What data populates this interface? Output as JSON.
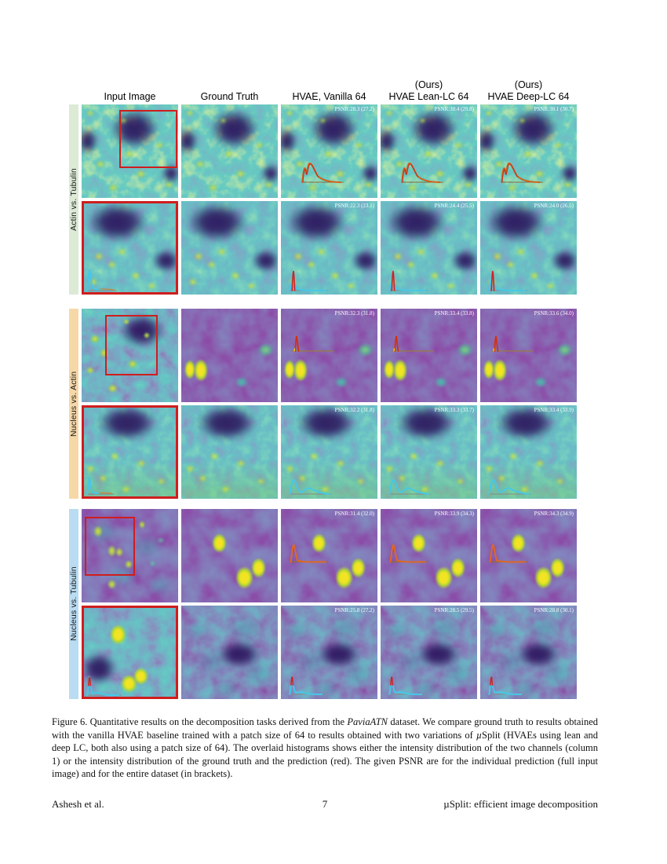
{
  "header": {
    "columns": [
      {
        "top": "",
        "label": "Input Image"
      },
      {
        "top": "",
        "label": "Ground Truth"
      },
      {
        "top": "",
        "label": "HVAE, Vanilla 64"
      },
      {
        "top": "(Ours)",
        "label": "HVAE Lean-LC 64"
      },
      {
        "top": "(Ours)",
        "label": "HVAE Deep-LC 64"
      }
    ]
  },
  "groups": [
    {
      "label": "Actin vs. Tubulin",
      "band_color": "#dcead6",
      "rows": [
        {
          "psnr": [
            "PSNR:28.3 (27.2)",
            "PSNR:30.4 (29.8)",
            "PSNR:30.1 (30.7)"
          ]
        },
        {
          "psnr": [
            "PSNR:22.3 (23.1)",
            "PSNR:24.4 (25.5)",
            "PSNR:24.0 (26.5)"
          ]
        }
      ]
    },
    {
      "label": "Nucleus vs. Actin",
      "band_color": "#f6d8a8",
      "rows": [
        {
          "psnr": [
            "PSNR:32.3 (31.8)",
            "PSNR:33.4 (33.8)",
            "PSNR:33.6 (34.0)"
          ]
        },
        {
          "psnr": [
            "PSNR:32.2 (31.8)",
            "PSNR:33.3 (33.7)",
            "PSNR:33.4 (33.9)"
          ]
        }
      ]
    },
    {
      "label": "Nucleus vs. Tubulin",
      "band_color": "#badcf2",
      "rows": [
        {
          "psnr": [
            "PSNR:31.4 (32.0)",
            "PSNR:33.9 (34.3)",
            "PSNR:34.3 (34.9)"
          ]
        },
        {
          "psnr": [
            "PSNR:25.8 (27.2)",
            "PSNR:28.5 (29.5)",
            "PSNR:28.8 (30.1)"
          ]
        }
      ]
    }
  ],
  "caption": {
    "parts": [
      {
        "t": "Figure 6. Quantitative results on the decomposition tasks derived from the ",
        "i": false
      },
      {
        "t": "PaviaATN",
        "i": true
      },
      {
        "t": " dataset. We compare ground truth to results obtained with the vanilla HVAE baseline trained with a patch size of 64 to results obtained with two variations of ",
        "i": false
      },
      {
        "t": "µ",
        "i": true
      },
      {
        "t": "Split (HVAEs using lean and deep LC, both also using a patch size of 64). The overlaid histograms shows either the intensity distribution of the two channels (column 1) or the intensity distribution of the ground truth and the prediction (red). The given PSNR are for the individual prediction (full input image) and for the entire dataset (in brackets).",
        "i": false
      }
    ]
  },
  "footer": {
    "left": "Ashesh et al.",
    "page": "7",
    "right": "µSplit: efficient image decomposition"
  },
  "colors": {
    "highlight_red": "#cf1d1d",
    "hist_cyan": "#45c8e8",
    "hist_orange": "#d2601a",
    "hist_red": "#d42020"
  }
}
